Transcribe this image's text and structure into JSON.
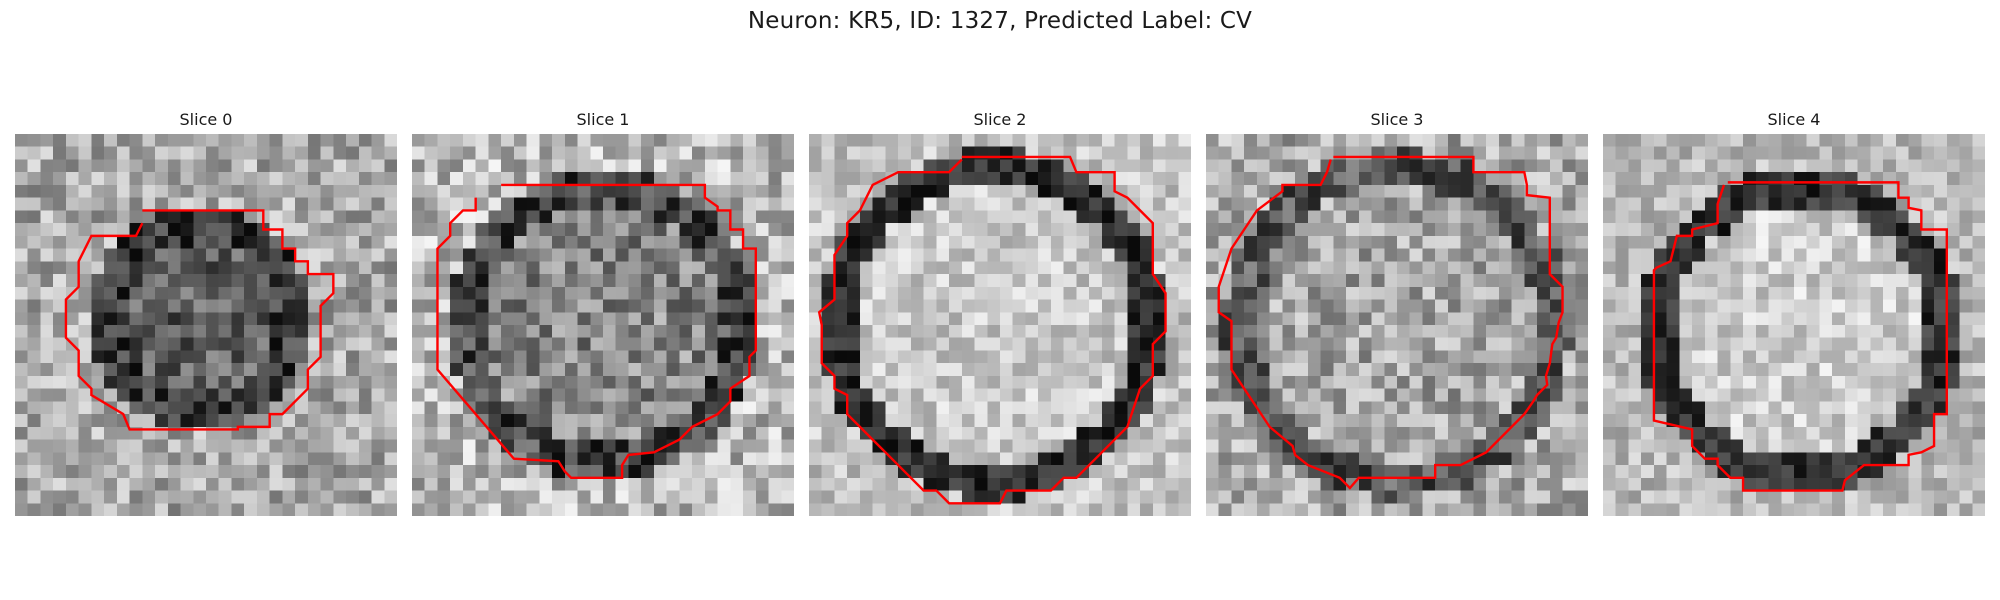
{
  "figure": {
    "suptitle": "Neuron: KR5, ID: 1327, Predicted Label: CV",
    "contour_color": "#ff0000",
    "colormap": "gray"
  },
  "panels": [
    {
      "title": "Slice 0"
    },
    {
      "title": "Slice 1"
    },
    {
      "title": "Slice 2"
    },
    {
      "title": "Slice 3"
    },
    {
      "title": "Slice 4"
    }
  ]
}
